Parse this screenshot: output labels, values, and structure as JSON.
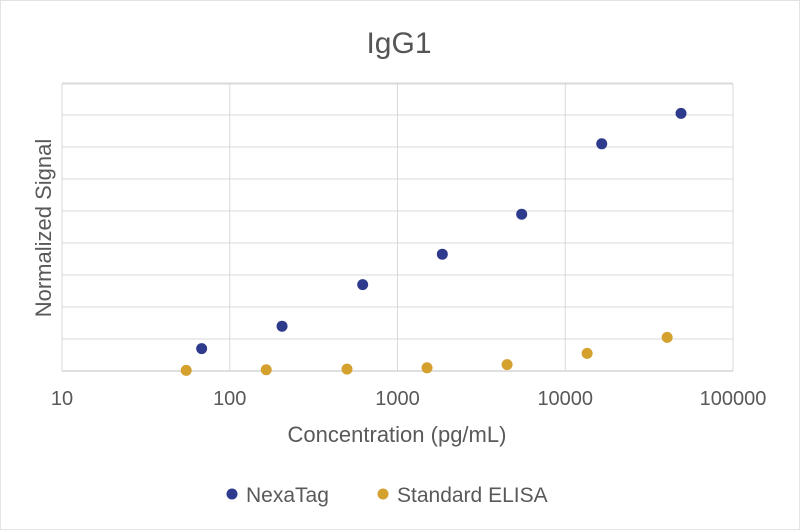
{
  "chart_data": {
    "type": "scatter",
    "title": "IgG1",
    "xlabel": "Concentration (pg/mL)",
    "ylabel": "Normalized Signal",
    "x_scale": "log",
    "xlim": [
      10,
      100000
    ],
    "ylim": [
      0,
      8
    ],
    "x_ticks": [
      "10",
      "100",
      "1000",
      "10000",
      "100000"
    ],
    "grid": true,
    "legend_position": "bottom",
    "series": [
      {
        "name": "NexaTag",
        "color": "#2e3a8c",
        "x": [
          68,
          205,
          620,
          1850,
          5500,
          16500,
          49000
        ],
        "y": [
          0.7,
          1.4,
          2.7,
          3.65,
          4.9,
          7.1,
          8.05
        ]
      },
      {
        "name": "Standard ELISA",
        "color": "#d4a02e",
        "x": [
          55,
          165,
          500,
          1500,
          4500,
          13500,
          40500
        ],
        "y": [
          0.02,
          0.04,
          0.06,
          0.1,
          0.2,
          0.55,
          1.05
        ]
      }
    ]
  }
}
